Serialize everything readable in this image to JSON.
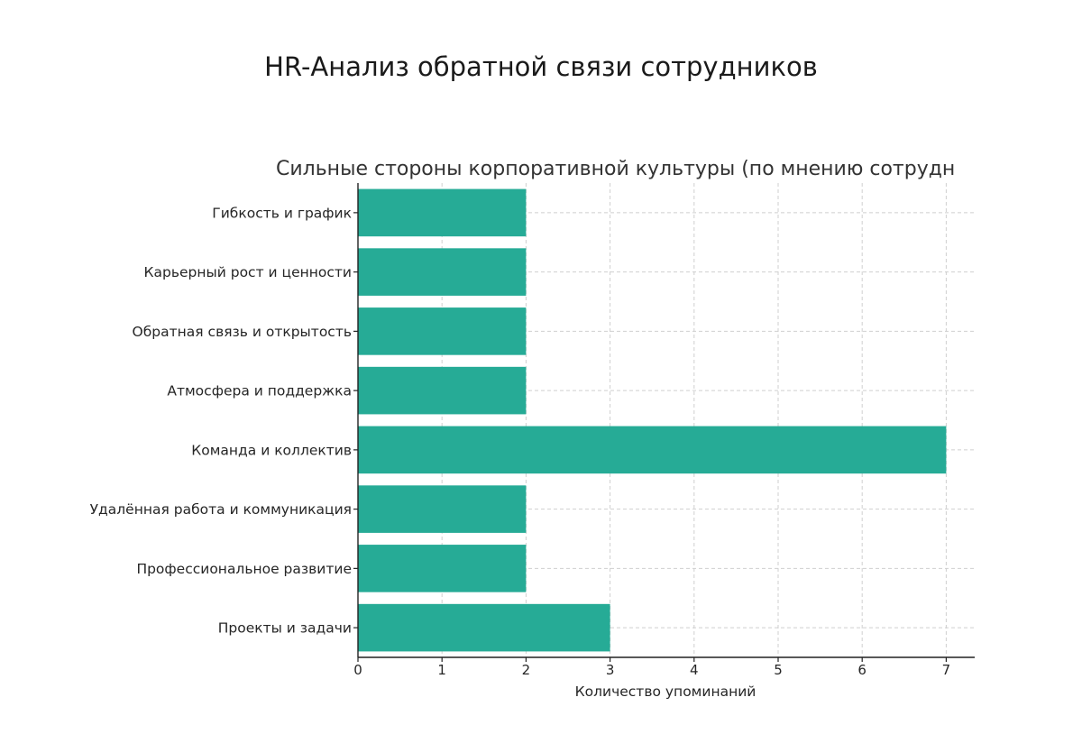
{
  "page": {
    "title": "HR-Анализ обратной связи сотрудников"
  },
  "chart_data": {
    "type": "bar",
    "orientation": "horizontal",
    "title": "Сильные стороны корпоративной культуры (по мнению сотрудн",
    "xlabel": "Количество упоминаний",
    "ylabel": "",
    "categories": [
      "Гибкость и график",
      "Карьерный рост и ценности",
      "Обратная связь и открытость",
      "Атмосфера и поддержка",
      "Команда и коллектив",
      "Удалённая работа и коммуникация",
      "Профессиональное развитие",
      "Проекты и задачи"
    ],
    "values": [
      2,
      2,
      2,
      2,
      7,
      2,
      2,
      3
    ],
    "xlim": [
      0,
      7.35
    ],
    "xticks": [
      "0",
      "1",
      "2",
      "3",
      "4",
      "5",
      "6",
      "7"
    ],
    "grid": true,
    "bar_color": "#26ab96",
    "legend": "none"
  }
}
